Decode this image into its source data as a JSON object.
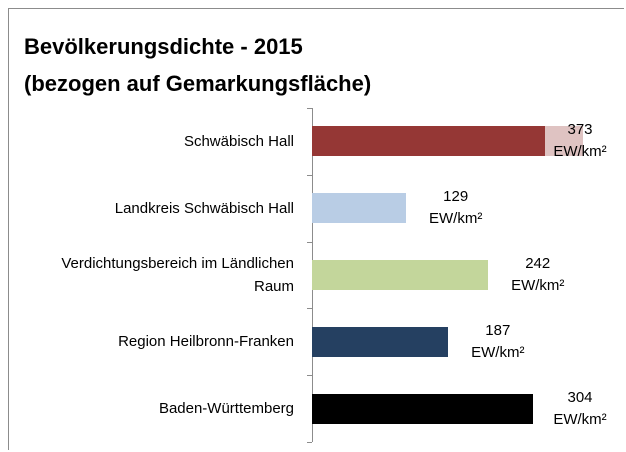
{
  "chart_data": {
    "type": "bar",
    "orientation": "horizontal",
    "title": "Bevölkerungsdichte - 2015",
    "subtitle": "(bezogen auf Gemarkungsfläche)",
    "categories": [
      "Schwäbisch Hall",
      "Landkreis Schwäbisch Hall",
      "Verdichtungsbereich im Ländlichen Raum",
      "Region Heilbronn-Franken",
      "Baden-Württemberg"
    ],
    "values": [
      373,
      129,
      242,
      187,
      304
    ],
    "value_labels": [
      "373 EW/km²",
      "129 EW/km²",
      "242 EW/km²",
      "187 EW/km²",
      "304 EW/km²"
    ],
    "colors": [
      "#953735",
      "#b9cde5",
      "#c3d69b",
      "#254061",
      "#000000"
    ],
    "xlim": [
      0,
      420
    ]
  }
}
